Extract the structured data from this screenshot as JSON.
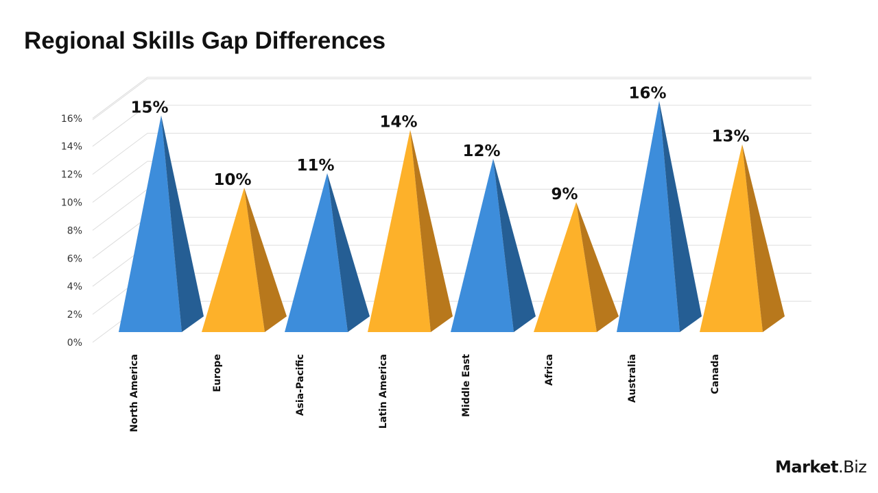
{
  "chart_data": {
    "type": "bar",
    "style": "3d-pyramid",
    "title": "Regional Skills Gap Differences",
    "categories": [
      "North America",
      "Europe",
      "Asia-Pacific",
      "Latin America",
      "Middle East",
      "Africa",
      "Australia",
      "Canada"
    ],
    "values": [
      15,
      10,
      11,
      14,
      12,
      9,
      16,
      13
    ],
    "data_labels": [
      "15%",
      "10%",
      "11%",
      "14%",
      "12%",
      "9%",
      "16%",
      "13%"
    ],
    "colors": [
      "#3d8ddb",
      "#fdb12a",
      "#3d8ddb",
      "#fdb12a",
      "#3d8ddb",
      "#fdb12a",
      "#3d8ddb",
      "#fdb12a"
    ],
    "side_colors": {
      "#3d8ddb": "#255e94",
      "#fdb12a": "#b8781c"
    },
    "y_ticks": [
      "0%",
      "2%",
      "4%",
      "6%",
      "8%",
      "10%",
      "12%",
      "14%",
      "16%"
    ],
    "ylim": [
      0,
      16
    ],
    "grid": true,
    "xlabel": "",
    "ylabel": ""
  },
  "logo": {
    "bold": "Market",
    "regular": ".Biz"
  }
}
